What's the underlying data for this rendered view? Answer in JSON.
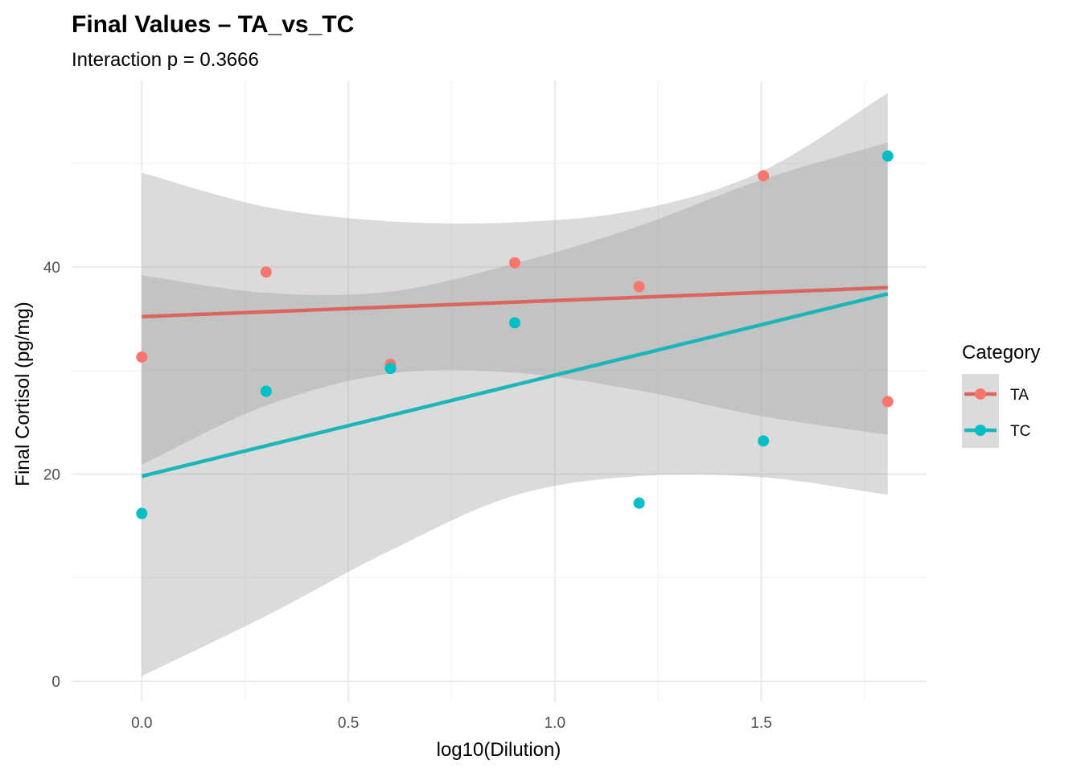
{
  "chart_data": {
    "type": "scatter",
    "title": "Final Values – TA_vs_TC",
    "subtitle": "Interaction p = 0.3666",
    "xlabel": "log10(Dilution)",
    "ylabel": "Final Cortisol (pg/mg)",
    "xlim": [
      -0.17,
      1.9
    ],
    "ylim": [
      -2,
      58
    ],
    "x_ticks": [
      0.0,
      0.5,
      1.0,
      1.5
    ],
    "x_tick_labels": [
      "0.0",
      "0.5",
      "1.0",
      "1.5"
    ],
    "y_ticks": [
      0,
      20,
      40
    ],
    "y_tick_labels": [
      "0",
      "20",
      "40"
    ],
    "grid": true,
    "legend": {
      "title": "Category",
      "position": "right"
    },
    "series": [
      {
        "name": "TA",
        "color": "#F8766D",
        "line_color": "#D9675F",
        "x": [
          0.0,
          0.301,
          0.602,
          0.903,
          1.204,
          1.505,
          1.806
        ],
        "y": [
          31.3,
          39.5,
          30.6,
          40.4,
          38.1,
          48.8,
          27.0
        ],
        "fit": {
          "x": [
            0.0,
            1.806
          ],
          "y": [
            35.2,
            38.0
          ]
        },
        "ci_band": {
          "x": [
            0.0,
            0.3,
            0.6,
            0.9,
            1.2,
            1.5,
            1.806
          ],
          "lower": [
            20.9,
            26.6,
            29.7,
            29.8,
            28.1,
            25.6,
            23.8
          ],
          "upper": [
            39.2,
            37.5,
            37.6,
            40.3,
            43.9,
            48.4,
            52.0
          ]
        }
      },
      {
        "name": "TC",
        "color": "#00BFC4",
        "line_color": "#1CB5B8",
        "x": [
          0.0,
          0.301,
          0.602,
          0.903,
          1.204,
          1.505,
          1.806
        ],
        "y": [
          16.2,
          28.0,
          30.2,
          34.6,
          17.2,
          23.2,
          50.7
        ],
        "fit": {
          "x": [
            0.0,
            1.806
          ],
          "y": [
            19.8,
            37.4
          ]
        },
        "ci_band": {
          "x": [
            0.0,
            0.3,
            0.6,
            0.9,
            1.2,
            1.5,
            1.806
          ],
          "lower": [
            0.5,
            6.3,
            12.6,
            17.9,
            19.8,
            19.7,
            18.0
          ],
          "upper": [
            49.1,
            45.8,
            44.4,
            44.3,
            45.5,
            49.2,
            56.8
          ]
        }
      }
    ]
  },
  "style": {
    "band_color": "#999999",
    "band_opacity": 0.35,
    "grid_major": "#EBEBEB",
    "grid_minor": "#F3F3F3"
  }
}
